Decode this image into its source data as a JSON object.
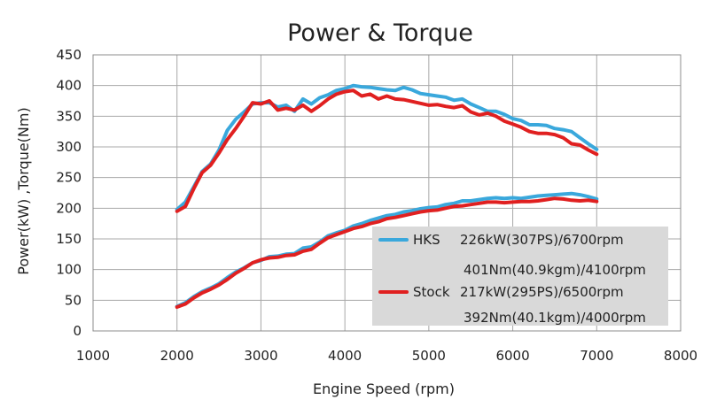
{
  "chart_data": {
    "type": "line",
    "title": "Power & Torque",
    "xlabel": "Engine Speed (rpm)",
    "ylabel": "Power(kW) ,Torque(Nm)",
    "xlim": [
      1000,
      8000
    ],
    "ylim": [
      0,
      450
    ],
    "xticks": [
      1000,
      2000,
      3000,
      4000,
      5000,
      6000,
      7000,
      8000
    ],
    "yticks": [
      0,
      50,
      100,
      150,
      200,
      250,
      300,
      350,
      400,
      450
    ],
    "grid": true,
    "legend_position": "bottom-right",
    "series": [
      {
        "name": "HKS",
        "color": "#3aa8dc",
        "x": [
          2000,
          2100,
          2200,
          2300,
          2400,
          2500,
          2600,
          2700,
          2800,
          2900,
          3000,
          3100,
          3200,
          3300,
          3400,
          3500,
          3600,
          3700,
          3800,
          3900,
          4000,
          4100,
          4200,
          4300,
          4400,
          4500,
          4600,
          4700,
          4800,
          4900,
          5000,
          5100,
          5200,
          5300,
          5400,
          5500,
          5600,
          5700,
          5800,
          5900,
          6000,
          6100,
          6200,
          6300,
          6400,
          6500,
          6600,
          6700,
          6800,
          6900,
          7000
        ],
        "values": [
          40,
          46,
          56,
          64,
          70,
          77,
          87,
          96,
          103,
          111,
          115,
          121,
          122,
          125,
          126,
          135,
          137,
          145,
          155,
          160,
          164,
          171,
          175,
          180,
          184,
          188,
          190,
          194,
          196,
          199,
          201,
          202,
          206,
          208,
          212,
          212,
          214,
          216,
          217,
          216,
          217,
          216,
          218,
          220,
          221,
          222,
          223,
          224,
          222,
          219,
          215
        ],
        "torque_values": [
          198,
          210,
          235,
          260,
          272,
          295,
          327,
          345,
          357,
          370,
          372,
          372,
          365,
          368,
          358,
          378,
          370,
          380,
          385,
          392,
          395,
          400,
          398,
          397,
          395,
          393,
          392,
          397,
          393,
          387,
          385,
          383,
          381,
          376,
          378,
          370,
          364,
          358,
          358,
          353,
          346,
          343,
          336,
          336,
          335,
          330,
          328,
          325,
          315,
          305,
          296
        ],
        "labels": [
          "226kW(307PS)/6700rpm",
          "401Nm(40.9kgm)/4100rpm"
        ]
      },
      {
        "name": "Stock",
        "color": "#e02020",
        "x": [
          2000,
          2100,
          2200,
          2300,
          2400,
          2500,
          2600,
          2700,
          2800,
          2900,
          3000,
          3100,
          3200,
          3300,
          3400,
          3500,
          3600,
          3700,
          3800,
          3900,
          4000,
          4100,
          4200,
          4300,
          4400,
          4500,
          4600,
          4700,
          4800,
          4900,
          5000,
          5100,
          5200,
          5300,
          5400,
          5500,
          5600,
          5700,
          5800,
          5900,
          6000,
          6100,
          6200,
          6300,
          6400,
          6500,
          6600,
          6700,
          6800,
          6900,
          7000
        ],
        "values": [
          39,
          44,
          54,
          62,
          68,
          75,
          84,
          94,
          102,
          111,
          116,
          119,
          120,
          123,
          124,
          130,
          133,
          143,
          152,
          157,
          162,
          167,
          170,
          175,
          178,
          183,
          185,
          188,
          191,
          194,
          196,
          197,
          200,
          203,
          204,
          206,
          208,
          210,
          210,
          209,
          210,
          211,
          211,
          212,
          214,
          216,
          215,
          213,
          212,
          213,
          211
        ],
        "torque_values": [
          195,
          203,
          232,
          258,
          270,
          290,
          312,
          330,
          350,
          372,
          370,
          375,
          360,
          363,
          360,
          368,
          358,
          367,
          378,
          386,
          390,
          392,
          383,
          386,
          378,
          383,
          378,
          377,
          374,
          371,
          368,
          369,
          366,
          364,
          367,
          357,
          352,
          355,
          350,
          342,
          337,
          332,
          325,
          322,
          322,
          320,
          315,
          305,
          303,
          295,
          288
        ],
        "labels": [
          "217kW(295PS)/6500rpm",
          "392Nm(40.1kgm)/4000rpm"
        ]
      }
    ]
  }
}
